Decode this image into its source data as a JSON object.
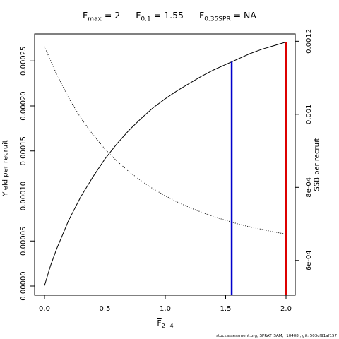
{
  "title": {
    "fmax_sym": "F",
    "fmax_sub": "max",
    "fmax_val": " = 2",
    "f01_sym": "F",
    "f01_sub": "0.1",
    "f01_val": " = 1.55",
    "fspr_sym": "F",
    "fspr_sub": "0.35SPR",
    "fspr_val": " = NA"
  },
  "xlabel": {
    "sym": "F",
    "sub": "2−4"
  },
  "footer": "stockassessment.org, SPRAT_SAM, r10408 , git: 503cf91af157",
  "chart_data": {
    "type": "line",
    "xlim": [
      0,
      2
    ],
    "ylabel": "Yield per recruit",
    "y2label": "SSB per recruit",
    "x_ticks": [
      "0.0",
      "0.5",
      "1.0",
      "1.5",
      "2.0"
    ],
    "y_ticks": [
      "0.00000",
      "0.00005",
      "0.00010",
      "0.00015",
      "0.00020",
      "0.00025"
    ],
    "y2_ticks": [
      "6e-04",
      "8e-04",
      "0.001",
      "0.0012"
    ],
    "ylim": [
      0,
      0.00028
    ],
    "y2lim": [
      0.00053,
      0.00122
    ],
    "series": [
      {
        "color": "#000000",
        "style": "solid",
        "axis": "left",
        "x": [
          0,
          0.05,
          0.1,
          0.2,
          0.3,
          0.4,
          0.5,
          0.6,
          0.7,
          0.8,
          0.9,
          1.0,
          1.1,
          1.2,
          1.3,
          1.4,
          1.5,
          1.55,
          1.6,
          1.7,
          1.8,
          1.9,
          2.0
        ],
        "y": [
          5e-07,
          2.25e-05,
          4.1e-05,
          7.3e-05,
          9.9e-05,
          0.000121,
          0.000141,
          0.000158,
          0.000173,
          0.000186,
          0.000198,
          0.000208,
          0.000217,
          0.000225,
          0.000233,
          0.00024,
          0.000246,
          0.000249,
          0.000252,
          0.000258,
          0.000263,
          0.000267,
          0.000271
        ]
      },
      {
        "color": "#000000",
        "style": "dotted",
        "axis": "right",
        "x": [
          0,
          0.1,
          0.2,
          0.3,
          0.4,
          0.5,
          0.6,
          0.7,
          0.8,
          0.9,
          1.0,
          1.1,
          1.2,
          1.3,
          1.4,
          1.5,
          1.6,
          1.7,
          1.8,
          1.9,
          2.0
        ],
        "y": [
          0.001185,
          0.00111,
          0.001045,
          0.00099,
          0.000945,
          0.000905,
          0.000872,
          0.000843,
          0.000818,
          0.000796,
          0.000777,
          0.00076,
          0.000745,
          0.000732,
          0.00072,
          0.00071,
          0.0007,
          0.000692,
          0.000685,
          0.000678,
          0.000672
        ]
      }
    ],
    "vlines": [
      {
        "x": 1.55,
        "color": "#0000cc"
      },
      {
        "x": 2.0,
        "color": "#dd0000"
      }
    ]
  }
}
